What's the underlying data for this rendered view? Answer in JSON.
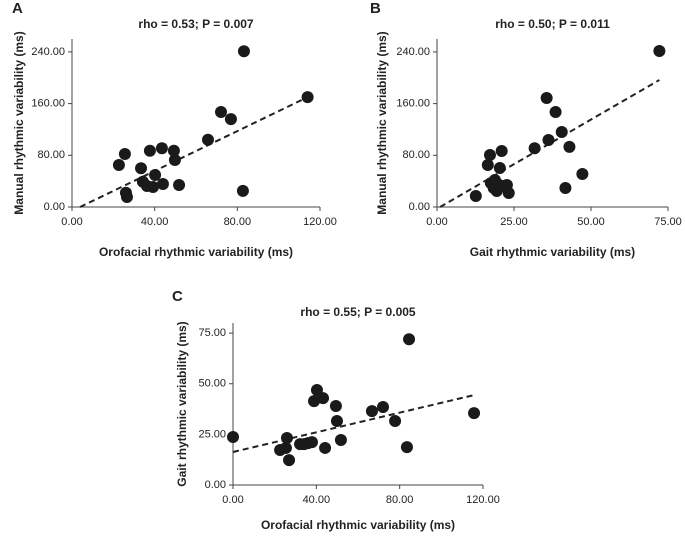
{
  "chart_data": [
    {
      "type": "scatter",
      "panel": "A",
      "title": "rho = 0.53; P = 0.007",
      "xlabel": "Orofacial rhythmic variability (ms)",
      "ylabel": "Manual rhythmic variability (ms)",
      "color": "#1a1a1a",
      "x": [
        22.7,
        25.6,
        26.1,
        26.6,
        33.4,
        34.3,
        36.3,
        37.7,
        39.2,
        40.2,
        43.5,
        44.0,
        49.3,
        49.8,
        51.8,
        65.8,
        72.1,
        76.9,
        83.2,
        82.7,
        114
      ],
      "values": [
        65,
        82,
        22,
        15.5,
        60,
        39,
        32.5,
        87,
        31,
        49.5,
        91,
        35.6,
        87,
        72.8,
        34,
        104,
        147,
        136,
        241,
        25,
        170
      ],
      "fit_line": {
        "x": [
          3.9,
          114
        ],
        "y": [
          0,
          170
        ]
      },
      "xlim": [
        0,
        120
      ],
      "ylim": [
        0,
        260
      ],
      "xticks": [
        {
          "value": 0,
          "label": "0.00"
        },
        {
          "value": 40,
          "label": "40.00"
        },
        {
          "value": 80,
          "label": "80.00"
        },
        {
          "value": 120,
          "label": "120.00"
        }
      ],
      "yticks": [
        {
          "value": 0,
          "label": "0.00"
        },
        {
          "value": 80,
          "label": "80.00"
        },
        {
          "value": 160,
          "label": "160.00"
        },
        {
          "value": 240,
          "label": "240.00"
        }
      ]
    },
    {
      "type": "scatter",
      "panel": "B",
      "title": "rho = 0.50; P = 0.011",
      "xlabel": "Gait rhythmic variability (ms)",
      "ylabel": "Manual rhythmic variability (ms)",
      "color": "#1a1a1a",
      "x": [
        12.6,
        16.5,
        17.2,
        17.5,
        18.4,
        18.8,
        19.4,
        19.7,
        20.4,
        21.0,
        21.7,
        22.7,
        23.3,
        31.7,
        35.6,
        36.2,
        38.5,
        40.5,
        41.7,
        43.0,
        47.2,
        72.2
      ],
      "values": [
        17,
        65,
        80.5,
        37,
        29.4,
        41.8,
        24.8,
        35.6,
        60.4,
        86.7,
        32.5,
        34,
        21.7,
        91,
        168.7,
        103.7,
        147,
        116,
        29.4,
        93,
        51,
        241.5
      ],
      "fit_line": {
        "x": [
          1,
          72.2
        ],
        "y": [
          0,
          196.6
        ]
      },
      "xlim": [
        0,
        75
      ],
      "ylim": [
        0,
        260
      ],
      "xticks": [
        {
          "value": 0,
          "label": "0.00"
        },
        {
          "value": 25,
          "label": "25.00"
        },
        {
          "value": 50,
          "label": "50.00"
        },
        {
          "value": 75,
          "label": "75.00"
        }
      ],
      "yticks": [
        {
          "value": 0,
          "label": "0.00"
        },
        {
          "value": 80,
          "label": "80.00"
        },
        {
          "value": 160,
          "label": "160.00"
        },
        {
          "value": 240,
          "label": "240.00"
        }
      ]
    },
    {
      "type": "scatter",
      "panel": "C",
      "title": "rho = 0.55; P = 0.005",
      "xlabel": "Orofacial rhythmic variability (ms)",
      "ylabel": "Gait rhythmic variability (ms)",
      "color": "#1a1a1a",
      "x": [
        0,
        22.6,
        25.4,
        25.9,
        26.9,
        32.2,
        34.1,
        36.0,
        37.9,
        38.9,
        40.3,
        43.2,
        44.2,
        49.4,
        49.9,
        51.8,
        66.7,
        72.0,
        77.8,
        83.5,
        84.5,
        115.7
      ],
      "values": [
        23.7,
        17.3,
        18.3,
        23.2,
        12.3,
        20.2,
        20.2,
        20.7,
        21.2,
        41.4,
        46.9,
        42.9,
        18.3,
        39,
        31.6,
        22.2,
        36.5,
        38.5,
        31.6,
        18.7,
        72,
        35.5
      ],
      "fit_line": {
        "x": [
          0,
          115.7
        ],
        "y": [
          16.3,
          44.4
        ]
      },
      "xlim": [
        0,
        120
      ],
      "ylim": [
        0,
        80
      ],
      "xticks": [
        {
          "value": 0,
          "label": "0.00"
        },
        {
          "value": 40,
          "label": "40.00"
        },
        {
          "value": 80,
          "label": "80.00"
        },
        {
          "value": 120,
          "label": "120.00"
        }
      ],
      "yticks": [
        {
          "value": 0,
          "label": "0.00"
        },
        {
          "value": 25,
          "label": "25.00"
        },
        {
          "value": 50,
          "label": "50.00"
        },
        {
          "value": 75,
          "label": "75.00"
        }
      ]
    }
  ]
}
